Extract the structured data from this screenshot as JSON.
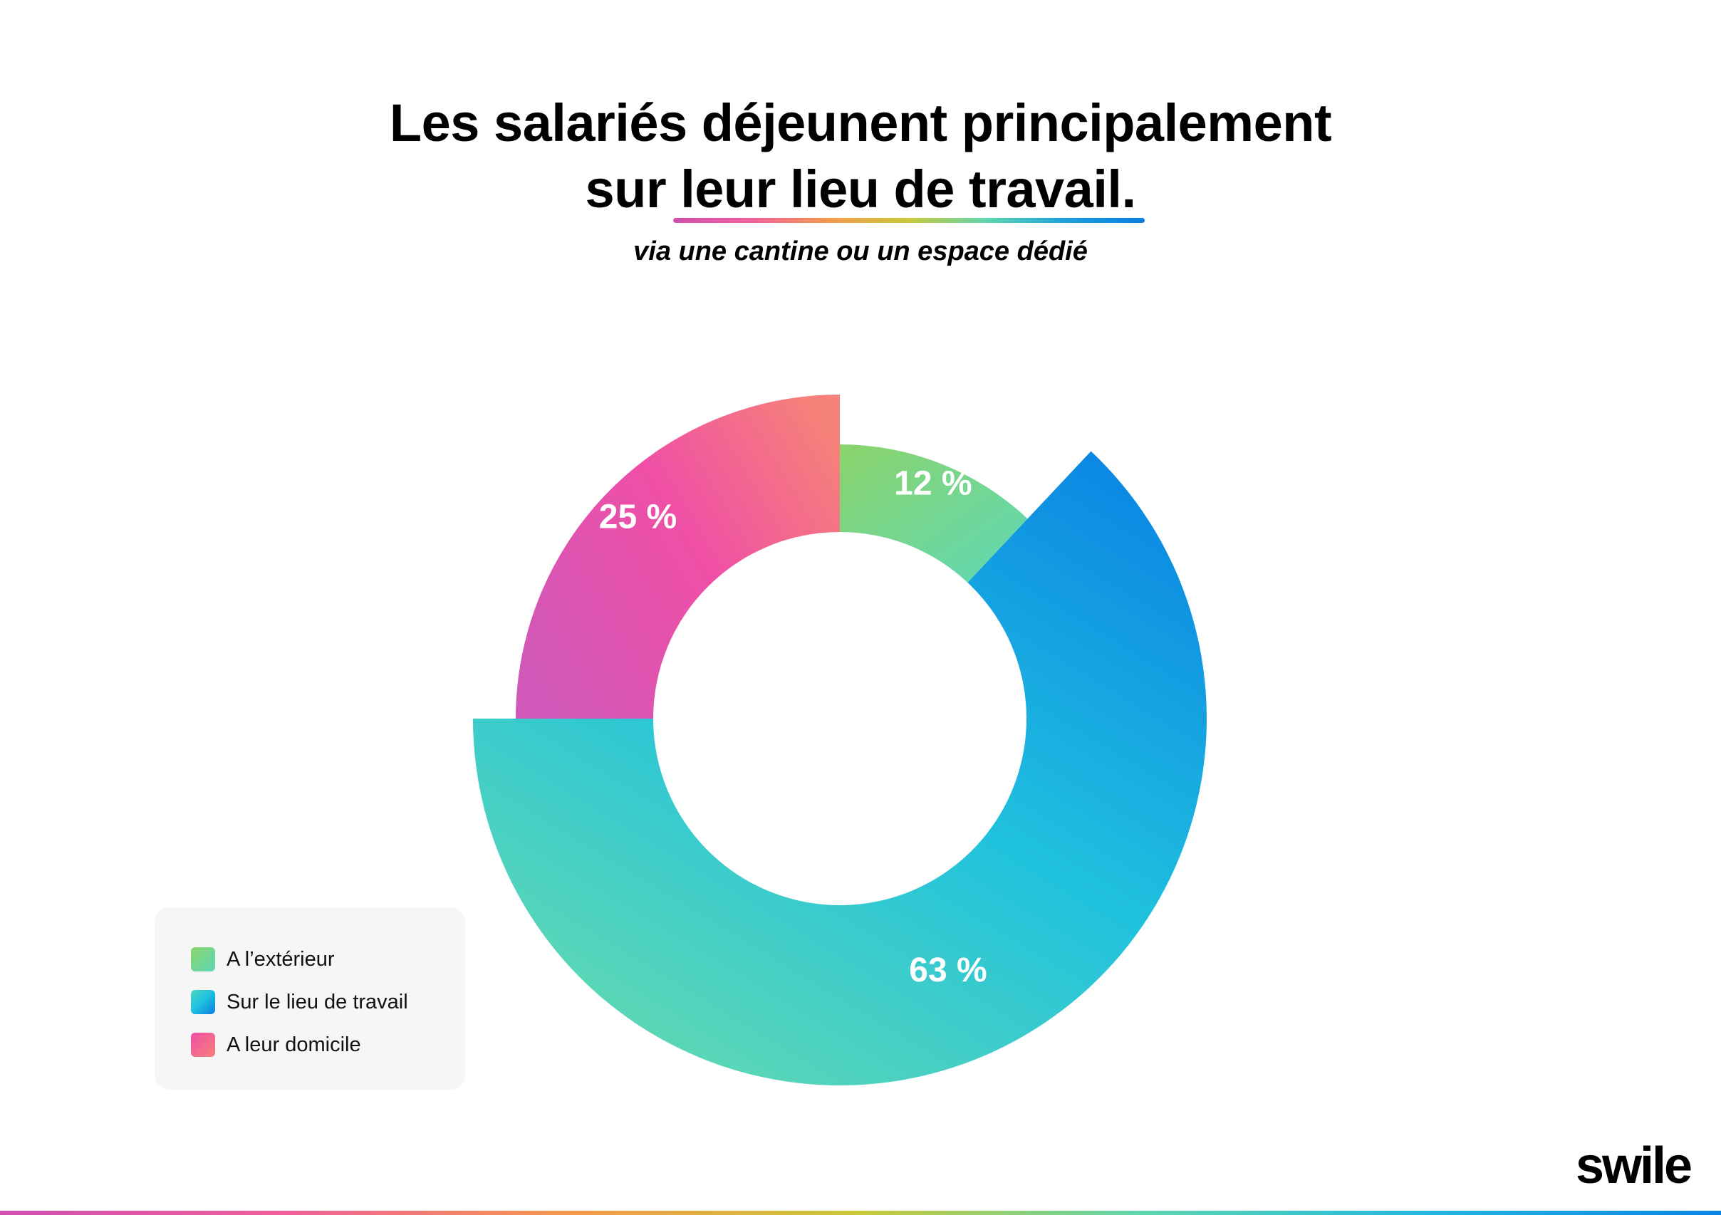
{
  "header": {
    "title_line1": "Les salariés déjeunent principalement",
    "title_line2": "sur leur lieu de travail.",
    "subtitle": "via une cantine ou un espace dédié"
  },
  "chart_data": {
    "type": "pie",
    "variant": "donut",
    "title": "Les salariés déjeunent principalement sur leur lieu de travail.",
    "subtitle": "via une cantine ou un espace dédié",
    "legend_position": "bottom-left",
    "slices": [
      {
        "name": "A l’extérieur",
        "value": 12,
        "label": "12 %",
        "colors": [
          "#8bd46b",
          "#5ed8b6"
        ]
      },
      {
        "name": "Sur le lieu de travail",
        "value": 63,
        "label": "63 %",
        "colors": [
          "#0a84e4",
          "#20c2de",
          "#64dab0"
        ]
      },
      {
        "name": "A leur domicile",
        "value": 25,
        "label": "25 %",
        "colors": [
          "#d058b8",
          "#ef4fa6",
          "#f6807a"
        ]
      }
    ]
  },
  "brand": {
    "logo": "swile"
  }
}
